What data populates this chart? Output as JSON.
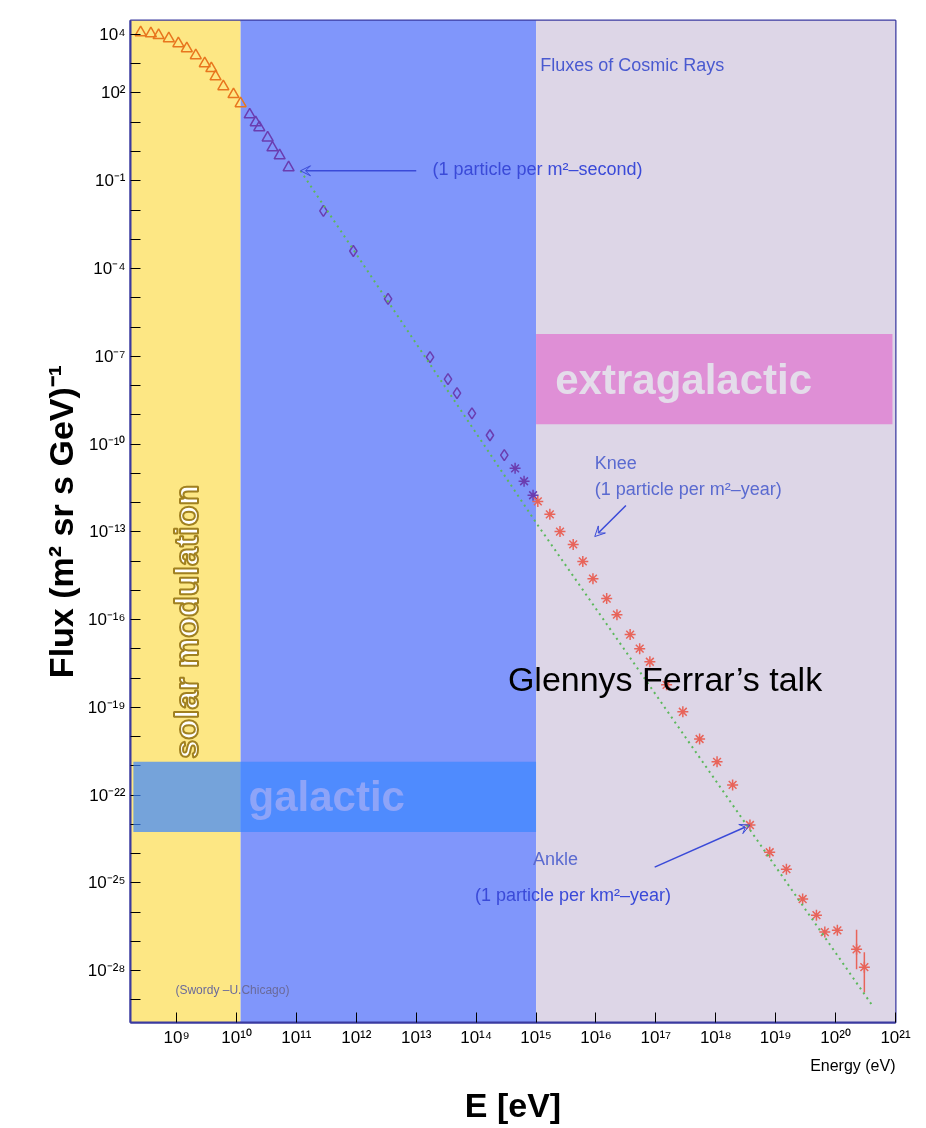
{
  "chart_data": {
    "type": "scatter",
    "title": "Fluxes of Cosmic Rays",
    "xlabel": "E [eV]",
    "ylabel": "Flux (m² sr s GeV)⁻¹",
    "log": "xy",
    "grid": false,
    "xlim": [
      170000000.0,
      1e+21
    ],
    "ylim": [
      1.7e-30,
      30000.0
    ],
    "xticks": [
      {
        "value": 1000000000.0,
        "label": "10⁹"
      },
      {
        "value": 10000000000.0,
        "label": "10¹⁰"
      },
      {
        "value": 100000000000.0,
        "label": "10¹¹"
      },
      {
        "value": 1000000000000.0,
        "label": "10¹²"
      },
      {
        "value": 10000000000000.0,
        "label": "10¹³"
      },
      {
        "value": 100000000000000.0,
        "label": "10¹⁴"
      },
      {
        "value": 1000000000000000.0,
        "label": "10¹⁵"
      },
      {
        "value": 1e+16,
        "label": "10¹⁶"
      },
      {
        "value": 1e+17,
        "label": "10¹⁷"
      },
      {
        "value": 1e+18,
        "label": "10¹⁸"
      },
      {
        "value": 1e+19,
        "label": "10¹⁹"
      },
      {
        "value": 1e+20,
        "label": "10²⁰"
      },
      {
        "value": 1e+21,
        "label": "10²¹"
      }
    ],
    "yticks": [
      {
        "value": 10000.0,
        "label": "10⁴"
      },
      {
        "value": 1000.0,
        "label": null
      },
      {
        "value": 100.0,
        "label": "10²"
      },
      {
        "value": 10.0,
        "label": null
      },
      {
        "value": 1,
        "label": null
      },
      {
        "value": 0.1,
        "label": "10⁻¹"
      },
      {
        "value": 0.01,
        "label": null
      },
      {
        "value": 0.001,
        "label": null
      },
      {
        "value": 0.0001,
        "label": "10⁻⁴"
      },
      {
        "value": 1e-05,
        "label": null
      },
      {
        "value": 1e-06,
        "label": null
      },
      {
        "value": 1e-07,
        "label": "10⁻⁷"
      },
      {
        "value": 1e-08,
        "label": null
      },
      {
        "value": 1e-09,
        "label": null
      },
      {
        "value": 1e-10,
        "label": "10⁻¹⁰"
      },
      {
        "value": 1e-11,
        "label": null
      },
      {
        "value": 1e-12,
        "label": null
      },
      {
        "value": 1e-13,
        "label": "10⁻¹³"
      },
      {
        "value": 1e-14,
        "label": null
      },
      {
        "value": 1e-15,
        "label": null
      },
      {
        "value": 1e-16,
        "label": "10⁻¹⁶"
      },
      {
        "value": 1e-17,
        "label": null
      },
      {
        "value": 1e-18,
        "label": null
      },
      {
        "value": 1e-19,
        "label": "10⁻¹⁹"
      },
      {
        "value": 1e-20,
        "label": null
      },
      {
        "value": 1e-21,
        "label": null
      },
      {
        "value": 1e-22,
        "label": "10⁻²²"
      },
      {
        "value": 1e-23,
        "label": null
      },
      {
        "value": 1e-24,
        "label": null
      },
      {
        "value": 1e-25,
        "label": "10⁻²⁵"
      },
      {
        "value": 1e-26,
        "label": null
      },
      {
        "value": 1e-27,
        "label": null
      },
      {
        "value": 1e-28,
        "label": "10⁻²⁸"
      },
      {
        "value": 1e-29,
        "label": null
      }
    ],
    "bands": [
      {
        "axis": "x",
        "from": 170000000.0,
        "to": 11700000000.0,
        "label": "solar modulation",
        "color": "#fde784"
      },
      {
        "axis": "x",
        "from": 11700000000.0,
        "to": 1000000000000000.0,
        "color": "#8096fb"
      },
      {
        "axis": "x",
        "from": 1000000000000000.0,
        "to": 1e+21,
        "color": "#ddd6e7"
      },
      {
        "axis": "x",
        "from": 190000000.0,
        "to": 1000000000000000.0,
        "label": "galactic",
        "color": "#3b86ff"
      },
      {
        "axis": "x",
        "from": 1000000000000000.0,
        "to": 8.9e+20,
        "label": "extragalactic",
        "color": "#df70cf"
      }
    ],
    "series": [
      {
        "marker": "triangle",
        "color": "#e8761e",
        "x": [
          251000000.0,
          372000000.0,
          501000000.0,
          741000000.0,
          1070000000.0,
          1480000000.0,
          2090000000.0,
          2950000000.0,
          3800000000.0,
          4470000000.0,
          6030000000.0,
          8910000000.0,
          11700000000.0
        ],
        "values": [
          11700.0,
          10700.0,
          9330.0,
          7240.0,
          4900.0,
          3310.0,
          1910.0,
          1020.0,
          692,
          363,
          166,
          89.1,
          43.7
        ]
      },
      {
        "marker": "triangle",
        "color": "#6a3db0",
        "x": [
          16600000000.0,
          20900000000.0,
          24000000000.0,
          33100000000.0,
          39800000000.0,
          52500000000.0,
          74100000000.0
        ],
        "values": [
          18.2,
          9.77,
          6.61,
          2.95,
          1.35,
          0.724,
          0.282
        ]
      },
      {
        "marker": "diamond",
        "color": "#6a3db0",
        "x": [
          282000000000.0,
          891000000000.0,
          3390000000000.0,
          17000000000000.0,
          33900000000000.0,
          47900000000000.0,
          85100000000000.0,
          170000000000000.0,
          295000000000000.0
        ],
        "values": [
          0.00933,
          0.000398,
          9.12e-06,
          9.33e-08,
          1.66e-08,
          5.5e-09,
          1.12e-09,
          2e-10,
          4.17e-11
        ]
      },
      {
        "marker": "cross",
        "color": "#6a3db0",
        "x": [
          447000000000000.0,
          631000000000000.0,
          891000000000000.0
        ],
        "values": [
          1.48e-11,
          5.37e-12,
          1.78e-12
        ]
      },
      {
        "marker": "cross",
        "color": "#e8645a",
        "x": [
          1070000000000000.0,
          1700000000000000.0,
          2510000000000000.0,
          4170000000000000.0,
          6030000000000000.0,
          8910000000000000.0,
          1.51e+16,
          2.24e+16,
          3.72e+16,
          5.37e+16,
          7.94e+16,
          1.51e+17,
          2.82e+17,
          5.37e+17,
          1.05e+18,
          1.91e+18,
          3.72e+18,
          7.94e+18,
          1.51e+19,
          2.82e+19,
          4.79e+19,
          6.61e+19,
          1.07e+20,
          2.24e+20,
          3.02e+20
        ],
        "values": [
          1.1e-12,
          3.98e-13,
          1.02e-13,
          3.72e-14,
          9.77e-15,
          2.51e-15,
          5.25e-16,
          1.48e-16,
          3.09e-17,
          1.02e-17,
          3.63e-18,
          5.89e-19,
          7.08e-20,
          8.32e-21,
          1.38e-21,
          2.24e-22,
          9.55e-24,
          1.12e-24,
          2.95e-25,
          2.82e-26,
          7.94e-27,
          2.09e-27,
          2.4e-27,
          5.37e-28,
          1.32e-28
        ],
        "errors": [
          null,
          null,
          null,
          null,
          null,
          null,
          null,
          null,
          null,
          null,
          null,
          null,
          null,
          null,
          null,
          null,
          null,
          null,
          null,
          null,
          null,
          null,
          null,
          [
            1.12e-28,
            2.51e-27
          ],
          [
            1.82e-29,
            4.27e-28
          ]
        ]
      },
      {
        "type": "line",
        "line_style": "dotted",
        "marker": "none",
        "color": "#5cb85c",
        "x": [
          117000000000.0,
          1050000000000000.0,
          3.98e+20
        ],
        "values": [
          0.219,
          1.78e-13,
          7.08e-30
        ]
      }
    ],
    "annotations": [
      {
        "text": "(1 particle per m²–second)",
        "x": 117000000000.0,
        "y": 0.219
      },
      "Knee",
      "(1 particle per m²–year)",
      "Ankle",
      {
        "text": "(1 particle per km²–year)",
        "x": 3.72e+18,
        "y": 9.55e-24
      },
      "(Swordy –U.Chicago)",
      "Glennys Ferrar’s talk",
      "Energy (eV)"
    ]
  }
}
